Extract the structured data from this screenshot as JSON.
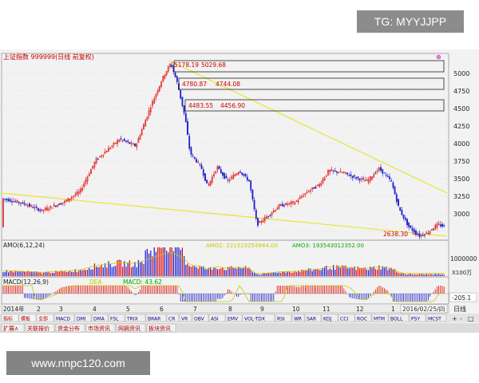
{
  "watermark_top": "TG: MYYJJPP",
  "watermark_bottom": "www.nnpc120.com",
  "chart": {
    "title": "上证指数 999999(日线 前复权)",
    "price_labels": [
      "5178.19",
      "5029.68",
      "4780.87",
      "4744.08",
      "4483.55",
      "4456.90",
      "2638.30"
    ],
    "low_marker": "2638.30",
    "y_ticks": [
      "5000",
      "4750",
      "4500",
      "4250",
      "4000",
      "3750",
      "3500",
      "3250",
      "3000"
    ],
    "amo_label": "AMO(6,12,24)",
    "amo_value": "1000000",
    "amo_unit": "X100万",
    "amo_series": [
      "AMO2: 221523254944.00",
      "AMO3: 193543012352.00"
    ],
    "macd_label": "MACD(12,26,9)",
    "macd_dea": "DEA",
    "macd_value": "MACD: 43.62",
    "macd_right": "-205.1",
    "x_labels": [
      "2014年",
      "2",
      "3",
      "4",
      "5",
      "6",
      "7",
      "8",
      "9",
      "10",
      "11",
      "12",
      "1"
    ],
    "date_box": "2016/02/25/四",
    "period": "日线"
  },
  "indicator_tabs": [
    "指标",
    "模板",
    "全部",
    "MACD",
    "DMI",
    "DMA",
    "FSL",
    "TRIX",
    "BRAR",
    "CR",
    "VR",
    "OBV",
    "ASI",
    "EMV",
    "VOL-TDX",
    "RSI",
    "WR",
    "SAR",
    "KDJ",
    "CCI",
    "ROC",
    "MTM",
    "BOLL",
    "PSY",
    "MCST"
  ],
  "bottom_tabs": [
    "扩展∧",
    "关联报价",
    "资金分布",
    "市场资讯",
    "网摘资讯",
    "板块资讯"
  ],
  "colors": {
    "up": "#e00000",
    "down": "#1a1ad0",
    "trend": "#e6e632",
    "bg": "#f2f2f2"
  }
}
